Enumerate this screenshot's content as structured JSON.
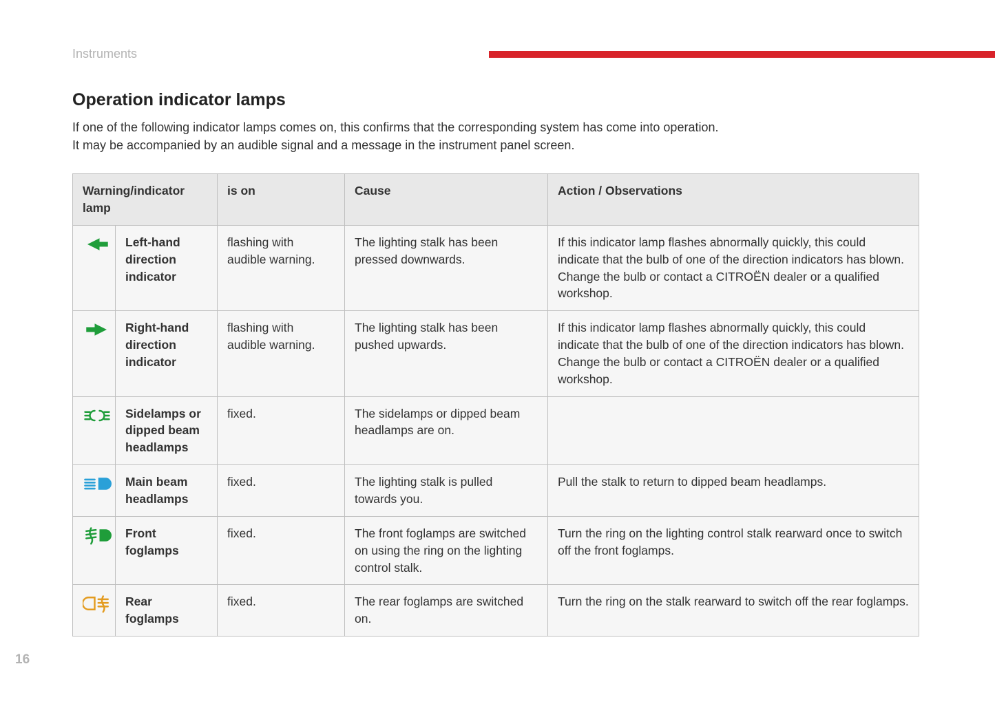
{
  "section_label": "Instruments",
  "title": "Operation indicator lamps",
  "intro_line1": "If one of the following indicator lamps comes on, this confirms that the corresponding system has come into operation.",
  "intro_line2": "It may be accompanied by an audible signal and a message in the instrument panel screen.",
  "page_number": "16",
  "accent_color": "#d8232a",
  "border_color": "#bfbfbf",
  "header_bg": "#e8e8e8",
  "row_bg": "#f6f6f6",
  "columns": {
    "lamp": "Warning/indicator lamp",
    "state": "is on",
    "cause": "Cause",
    "action": "Action / Observations"
  },
  "rows": [
    {
      "icon": "arrow-left",
      "icon_color": "#1f9d3a",
      "name": "Left-hand direction indicator",
      "state": "flashing with audible warning.",
      "cause": "The lighting stalk has been pressed downwards.",
      "action": "If this indicator lamp flashes abnormally quickly, this could indicate that the bulb of one of the direction indicators has blown. Change the bulb or contact a CITROËN dealer or a qualified workshop."
    },
    {
      "icon": "arrow-right",
      "icon_color": "#1f9d3a",
      "name": "Right-hand direction indicator",
      "state": "flashing with audible warning.",
      "cause": "The lighting stalk has been pushed upwards.",
      "action": "If this indicator lamp flashes abnormally quickly, this could indicate that the bulb of one of the direction indicators has blown. Change the bulb or contact a CITROËN dealer or a qualified workshop."
    },
    {
      "icon": "sidelamps",
      "icon_color": "#1f9d3a",
      "name": "Sidelamps or dipped beam headlamps",
      "state": "fixed.",
      "cause": "The sidelamps or dipped beam headlamps are on.",
      "action": ""
    },
    {
      "icon": "main-beam",
      "icon_color": "#2aa0d8",
      "name": "Main beam headlamps",
      "state": "fixed.",
      "cause": "The lighting stalk is pulled towards you.",
      "action": "Pull the stalk to return to dipped beam headlamps."
    },
    {
      "icon": "front-fog",
      "icon_color": "#1f9d3a",
      "name": "Front foglamps",
      "state": "fixed.",
      "cause": "The front foglamps are switched on using the ring on the lighting control stalk.",
      "action": "Turn the ring on the lighting control stalk rearward once to switch off the front foglamps."
    },
    {
      "icon": "rear-fog",
      "icon_color": "#e39b1f",
      "name": "Rear foglamps",
      "state": "fixed.",
      "cause": "The rear foglamps are switched on.",
      "action": "Turn the ring on the stalk rearward to switch off the rear foglamps."
    }
  ]
}
